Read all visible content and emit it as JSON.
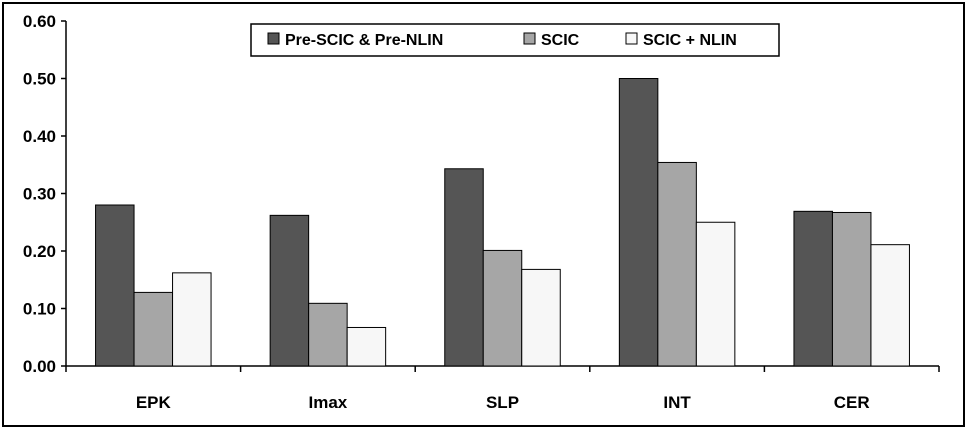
{
  "chart_data": {
    "type": "bar",
    "categories": [
      "EPK",
      "Imax",
      "SLP",
      "INT",
      "CER"
    ],
    "series": [
      {
        "name": "Pre-SCIC & Pre-NLIN",
        "values": [
          0.28,
          0.262,
          0.343,
          0.5,
          0.269
        ],
        "color": "#555555"
      },
      {
        "name": "SCIC",
        "values": [
          0.128,
          0.109,
          0.201,
          0.354,
          0.267
        ],
        "color": "#a6a6a6"
      },
      {
        "name": "SCIC + NLIN",
        "values": [
          0.162,
          0.067,
          0.168,
          0.25,
          0.211
        ],
        "color": "#f7f7f7"
      }
    ],
    "ylim": [
      0,
      0.6
    ],
    "yticks": [
      "0.00",
      "0.10",
      "0.20",
      "0.30",
      "0.40",
      "0.50",
      "0.60"
    ],
    "ytick_values": [
      0,
      0.1,
      0.2,
      0.3,
      0.4,
      0.5,
      0.6
    ],
    "grid": false,
    "legend_position": "top-center",
    "title": "",
    "xlabel": "",
    "ylabel": ""
  }
}
